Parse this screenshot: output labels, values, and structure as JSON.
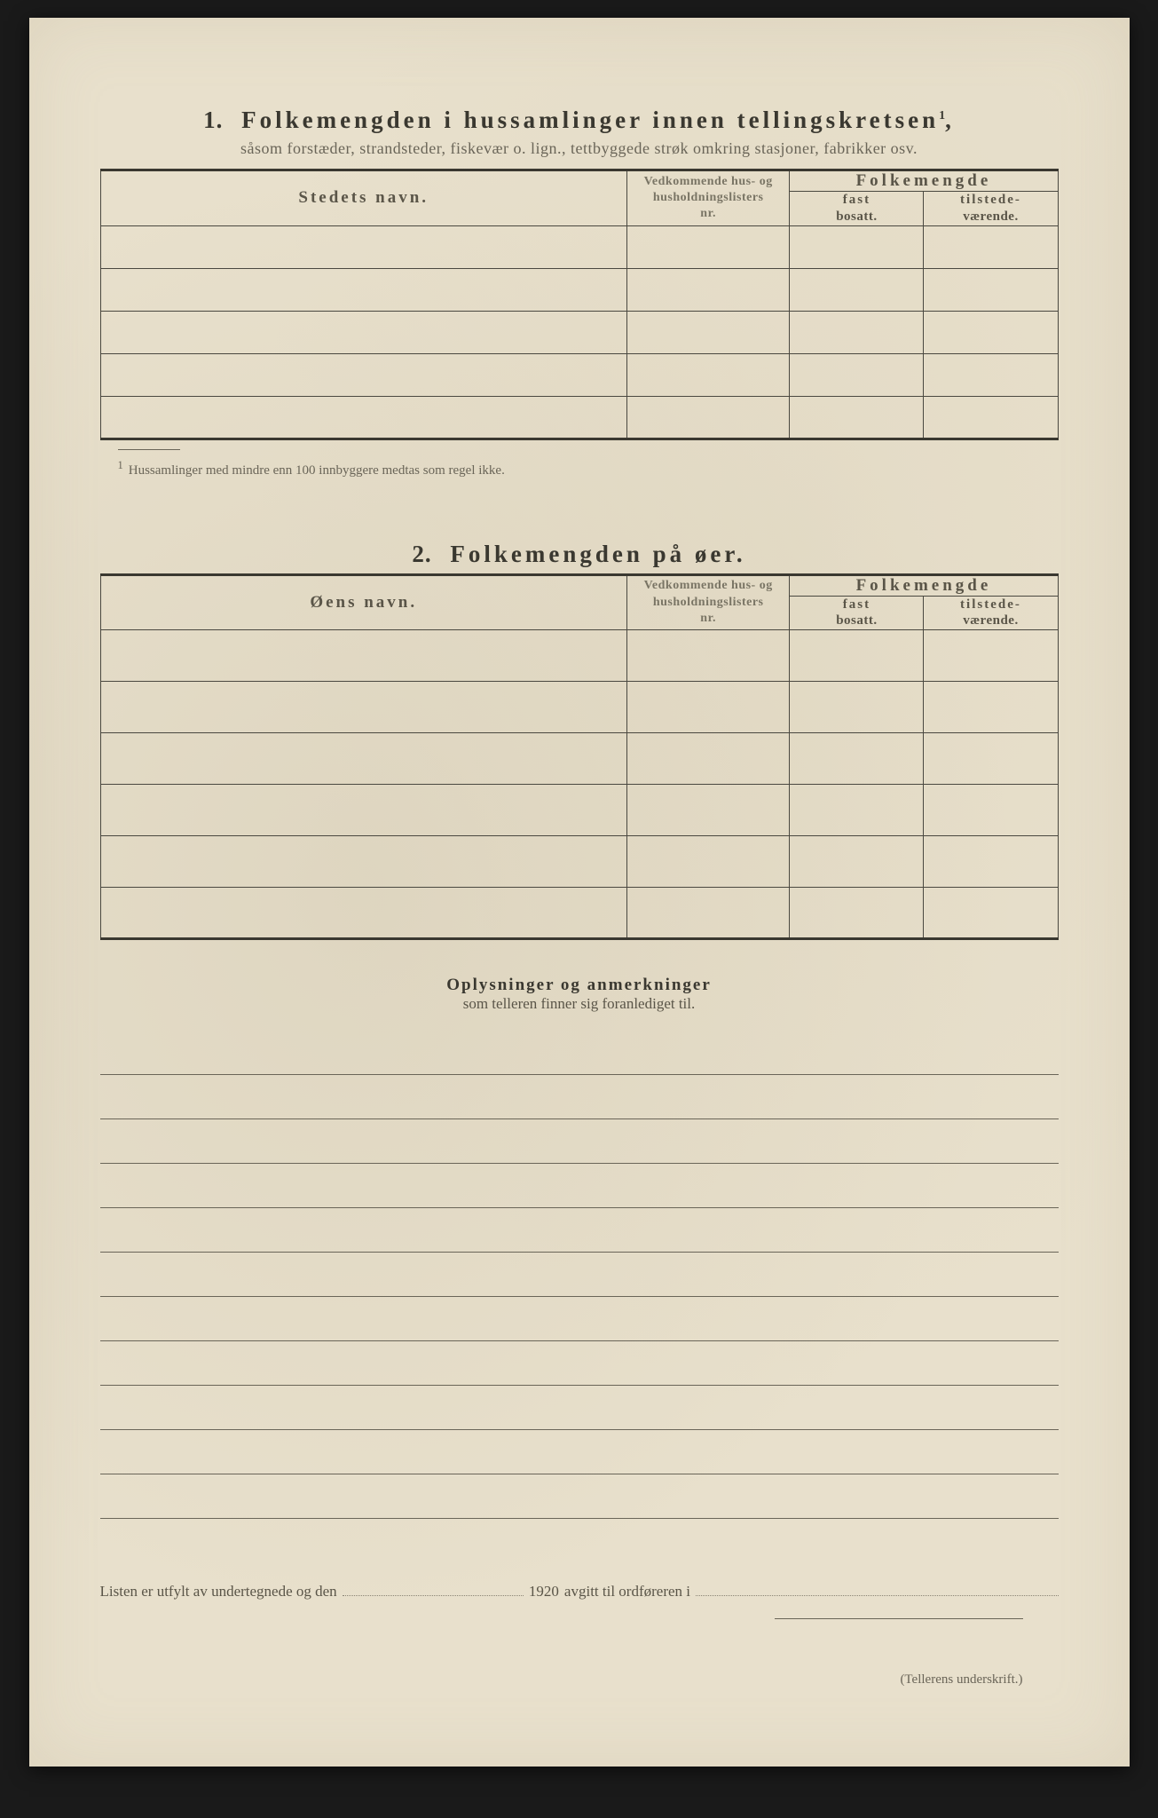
{
  "colors": {
    "paper": "#e8e0cc",
    "ink": "#4a4840",
    "ink_dark": "#3a3830",
    "ink_light": "#6a6558",
    "rule": "#4a4840"
  },
  "section1": {
    "number": "1.",
    "title": "Folkemengden i hussamlinger innen tellingskretsen",
    "sup": "1",
    "subtitle": "såsom forstæder, strandsteder, fiskevær o. lign., tettbyggede strøk omkring stasjoner, fabrikker osv.",
    "headers": {
      "name": "Stedets navn.",
      "nr_l1": "Vedkommende hus- og",
      "nr_l2": "husholdningslisters",
      "nr_l3": "nr.",
      "folk": "Folkemengde",
      "fast_b": "fast",
      "fast": "bosatt.",
      "til_b": "tilstede-",
      "til": "værende."
    },
    "rows": 5,
    "footnote_mark": "1",
    "footnote": "Hussamlinger med mindre enn 100 innbyggere medtas som regel ikke."
  },
  "section2": {
    "number": "2.",
    "title": "Folkemengden på øer.",
    "headers": {
      "name": "Øens navn.",
      "nr_l1": "Vedkommende hus- og",
      "nr_l2": "husholdningslisters",
      "nr_l3": "nr.",
      "folk": "Folkemengde",
      "fast_b": "fast",
      "fast": "bosatt.",
      "til_b": "tilstede-",
      "til": "værende."
    },
    "rows": 6
  },
  "remarks": {
    "title": "Oplysninger og anmerkninger",
    "subtitle": "som telleren finner sig foranlediget til.",
    "lines": 11
  },
  "signature": {
    "pre": "Listen er utfylt av undertegnede og den",
    "year": "1920",
    "mid": "avgitt til ordføreren i",
    "under": "(Tellerens underskrift.)"
  }
}
